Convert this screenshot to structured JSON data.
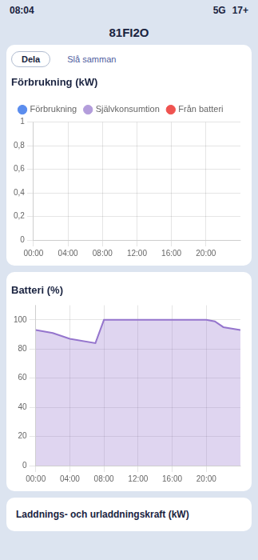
{
  "chart_data": [
    {
      "type": "line",
      "title": "Förbrukning (kW)",
      "annotations": [
        "08:04",
        "5G",
        "17+",
        "81FI2O",
        "Dela",
        "Slå samman"
      ],
      "x": [],
      "series": [
        {
          "name": "Förbrukning",
          "color": "#5b8dee",
          "values": []
        },
        {
          "name": "Självkonsumtion",
          "color": "#b39ddb",
          "values": []
        },
        {
          "name": "Från batteri",
          "color": "#ef5350",
          "values": []
        }
      ],
      "xlim": [
        0,
        24
      ],
      "xticks": [
        {
          "value": 0,
          "label": "00:00"
        },
        {
          "value": 4,
          "label": "04:00"
        },
        {
          "value": 8,
          "label": "08:00"
        },
        {
          "value": 12,
          "label": "12:00"
        },
        {
          "value": 16,
          "label": "16:00"
        },
        {
          "value": 20,
          "label": "20:00"
        }
      ],
      "ylim": [
        0,
        1
      ],
      "yticks": [
        0,
        {
          "value": 0.2,
          "label": "0,2"
        },
        {
          "value": 0.4,
          "label": "0,4"
        },
        {
          "value": 0.6,
          "label": "0,6"
        },
        {
          "value": 0.8,
          "label": "0,8"
        },
        1
      ],
      "grid": true,
      "legend": "top"
    },
    {
      "type": "area",
      "title": "Batteri (%)",
      "annotations": [
        "Laddnings- och urladdningskraft (kW)"
      ],
      "x": [
        0,
        2,
        4,
        7,
        8,
        20,
        21,
        22,
        24
      ],
      "values": [
        93,
        91,
        87,
        84,
        100,
        100,
        99,
        95,
        93
      ],
      "color": "#9575cd",
      "xlim": [
        0,
        24
      ],
      "xticks": [
        {
          "value": 0,
          "label": "00:00"
        },
        {
          "value": 4,
          "label": "04:00"
        },
        {
          "value": 8,
          "label": "08:00"
        },
        {
          "value": 12,
          "label": "12:00"
        },
        {
          "value": 16,
          "label": "16:00"
        },
        {
          "value": 20,
          "label": "20:00"
        }
      ],
      "ylim": [
        0,
        110
      ],
      "yticks": [
        0,
        20,
        40,
        60,
        80,
        100
      ],
      "grid": true
    }
  ]
}
